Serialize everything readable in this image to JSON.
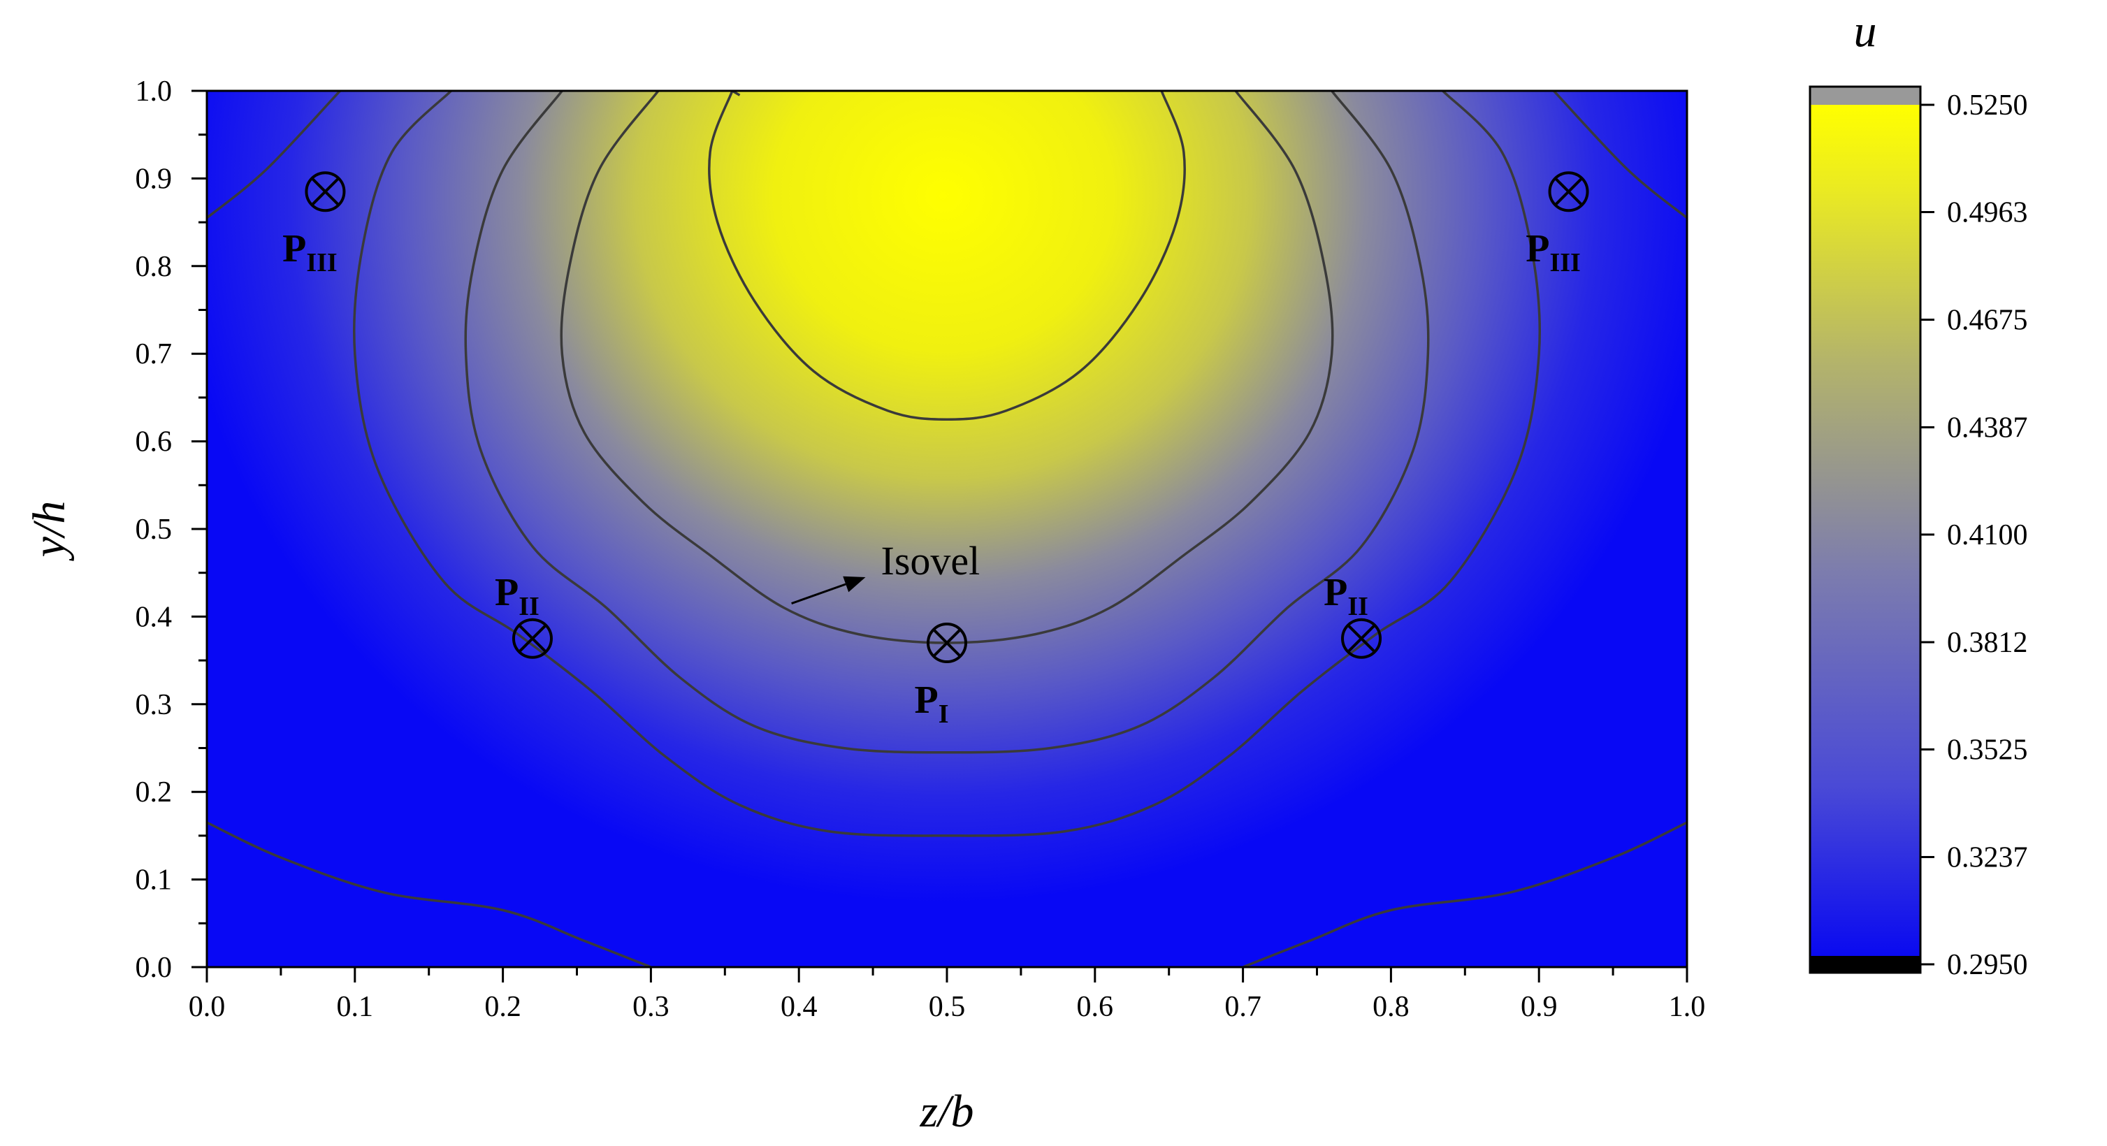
{
  "chart_data": {
    "type": "heatmap",
    "subtype": "filled-contour",
    "xlabel": "z/b",
    "ylabel": "y/h",
    "xlim": [
      0.0,
      1.0
    ],
    "ylim": [
      0.0,
      1.0
    ],
    "x_ticks": [
      "0.0",
      "0.1",
      "0.2",
      "0.3",
      "0.4",
      "0.5",
      "0.6",
      "0.7",
      "0.8",
      "0.9",
      "1.0"
    ],
    "y_ticks": [
      "0.0",
      "0.1",
      "0.2",
      "0.3",
      "0.4",
      "0.5",
      "0.6",
      "0.7",
      "0.8",
      "0.9",
      "1.0"
    ],
    "grid": false,
    "colorbar": {
      "title": "u",
      "range": [
        0.295,
        0.525
      ],
      "ticks": [
        "0.2950",
        "0.3237",
        "0.3525",
        "0.3812",
        "0.4100",
        "0.4387",
        "0.4675",
        "0.4963",
        "0.5250"
      ],
      "colors": [
        "#0a0af0",
        "#4a4ad6",
        "#7c7cae",
        "#b4b46a",
        "#eaea22",
        "#ffff00"
      ],
      "over_color": "#999999",
      "under_color": "#000000",
      "placement": "right"
    },
    "field": {
      "description_values": "u peaks ~0.525 near (z/b=0.5, y/h=0.88); lowest ~0.295 at bottom corners",
      "peak": {
        "z": 0.5,
        "y": 0.88,
        "u": 0.525
      },
      "min_u": 0.295
    },
    "contours": [
      {
        "level": 0.3812,
        "points": [
          [
            0.0,
            0.165
          ],
          [
            0.05,
            0.125
          ],
          [
            0.12,
            0.085
          ],
          [
            0.2,
            0.065
          ],
          [
            0.255,
            0.03
          ],
          [
            0.3,
            0.0
          ]
        ]
      },
      {
        "level": 0.3812,
        "points": [
          [
            0.7,
            0.0
          ],
          [
            0.745,
            0.03
          ],
          [
            0.8,
            0.065
          ],
          [
            0.88,
            0.085
          ],
          [
            0.95,
            0.125
          ],
          [
            1.0,
            0.165
          ]
        ]
      },
      {
        "level": 0.3812,
        "points": [
          [
            0.0,
            0.855
          ],
          [
            0.04,
            0.91
          ],
          [
            0.09,
            1.0
          ]
        ]
      },
      {
        "level": 0.3812,
        "points": [
          [
            0.91,
            1.0
          ],
          [
            0.96,
            0.91
          ],
          [
            1.0,
            0.855
          ]
        ]
      },
      {
        "level": 0.3812,
        "points": [
          [
            0.165,
            1.0
          ],
          [
            0.125,
            0.93
          ],
          [
            0.105,
            0.82
          ],
          [
            0.1,
            0.7
          ],
          [
            0.115,
            0.57
          ],
          [
            0.16,
            0.44
          ],
          [
            0.21,
            0.38
          ],
          [
            0.26,
            0.315
          ],
          [
            0.31,
            0.24
          ],
          [
            0.36,
            0.185
          ],
          [
            0.42,
            0.155
          ],
          [
            0.5,
            0.15
          ],
          [
            0.58,
            0.155
          ],
          [
            0.64,
            0.185
          ],
          [
            0.69,
            0.24
          ],
          [
            0.74,
            0.315
          ],
          [
            0.79,
            0.38
          ],
          [
            0.84,
            0.44
          ],
          [
            0.885,
            0.57
          ],
          [
            0.9,
            0.7
          ],
          [
            0.895,
            0.82
          ],
          [
            0.875,
            0.93
          ],
          [
            0.835,
            1.0
          ]
        ]
      },
      {
        "level": 0.41,
        "points": [
          [
            0.24,
            1.0
          ],
          [
            0.2,
            0.91
          ],
          [
            0.18,
            0.8
          ],
          [
            0.175,
            0.7
          ],
          [
            0.185,
            0.59
          ],
          [
            0.22,
            0.48
          ],
          [
            0.27,
            0.41
          ],
          [
            0.32,
            0.33
          ],
          [
            0.37,
            0.275
          ],
          [
            0.43,
            0.25
          ],
          [
            0.5,
            0.245
          ],
          [
            0.57,
            0.25
          ],
          [
            0.63,
            0.275
          ],
          [
            0.68,
            0.33
          ],
          [
            0.73,
            0.41
          ],
          [
            0.78,
            0.48
          ],
          [
            0.815,
            0.59
          ],
          [
            0.825,
            0.7
          ],
          [
            0.82,
            0.8
          ],
          [
            0.8,
            0.91
          ],
          [
            0.76,
            1.0
          ]
        ]
      },
      {
        "level": 0.4387,
        "points": [
          [
            0.305,
            1.0
          ],
          [
            0.265,
            0.91
          ],
          [
            0.245,
            0.8
          ],
          [
            0.24,
            0.7
          ],
          [
            0.255,
            0.61
          ],
          [
            0.295,
            0.53
          ],
          [
            0.34,
            0.47
          ],
          [
            0.39,
            0.41
          ],
          [
            0.44,
            0.38
          ],
          [
            0.5,
            0.37
          ],
          [
            0.56,
            0.38
          ],
          [
            0.61,
            0.41
          ],
          [
            0.66,
            0.47
          ],
          [
            0.705,
            0.53
          ],
          [
            0.745,
            0.61
          ],
          [
            0.76,
            0.7
          ],
          [
            0.755,
            0.8
          ],
          [
            0.735,
            0.91
          ],
          [
            0.695,
            1.0
          ]
        ]
      },
      {
        "level": 0.4675,
        "points": [
          [
            0.355,
            1.0
          ],
          [
            0.34,
            0.93
          ],
          [
            0.345,
            0.85
          ],
          [
            0.37,
            0.76
          ],
          [
            0.41,
            0.68
          ],
          [
            0.46,
            0.635
          ],
          [
            0.5,
            0.625
          ],
          [
            0.54,
            0.635
          ],
          [
            0.59,
            0.68
          ],
          [
            0.63,
            0.76
          ],
          [
            0.655,
            0.85
          ],
          [
            0.66,
            0.93
          ],
          [
            0.645,
            1.0
          ]
        ]
      },
      {
        "level": 0.4963,
        "points": [
          [
            0.355,
            1.0
          ],
          [
            0.36,
            0.995
          ]
        ]
      }
    ],
    "markers": [
      {
        "label": "P",
        "sub": "I",
        "z": 0.5,
        "y": 0.37,
        "label_side": "below"
      },
      {
        "label": "P",
        "sub": "II",
        "z": 0.22,
        "y": 0.375,
        "label_side": "above"
      },
      {
        "label": "P",
        "sub": "II",
        "z": 0.78,
        "y": 0.375,
        "label_side": "above"
      },
      {
        "label": "P",
        "sub": "III",
        "z": 0.08,
        "y": 0.885,
        "label_side": "below"
      },
      {
        "label": "P",
        "sub": "III",
        "z": 0.92,
        "y": 0.885,
        "label_side": "below"
      }
    ],
    "annotations": [
      {
        "text": "Isovel",
        "arrow_from": [
          0.395,
          0.415
        ],
        "arrow_to": [
          0.445,
          0.445
        ]
      }
    ]
  }
}
